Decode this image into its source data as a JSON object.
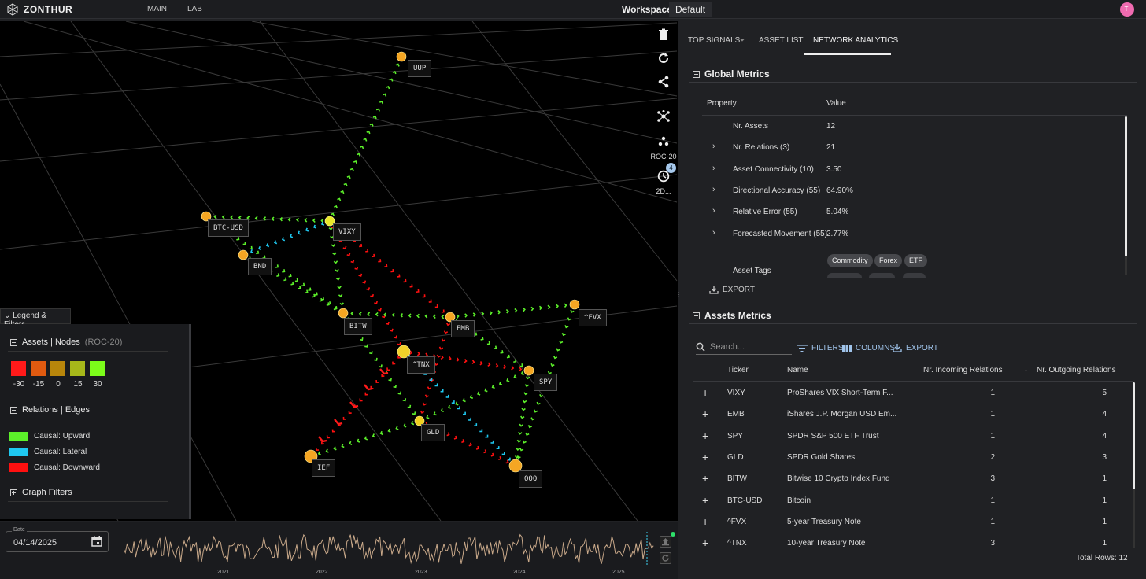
{
  "app": {
    "brand": "ZONTHUR",
    "nav": [
      "MAIN",
      "LAB"
    ],
    "workspace_label": "Workspace:",
    "workspace_value": "Default",
    "avatar_initials": "TI"
  },
  "toolbar": {
    "roc_label": "ROC-20",
    "history_label": "2D...",
    "history_badge": "4"
  },
  "graph": {
    "nodes": [
      {
        "id": "UUP",
        "label": "UUP"
      },
      {
        "id": "BTC-USD",
        "label": "BTC-USD"
      },
      {
        "id": "VIXY",
        "label": "VIXY"
      },
      {
        "id": "BND",
        "label": "BND"
      },
      {
        "id": "^FVX",
        "label": "^FVX"
      },
      {
        "id": "BITW",
        "label": "BITW"
      },
      {
        "id": "EMB",
        "label": "EMB"
      },
      {
        "id": "^TNX",
        "label": "^TNX"
      },
      {
        "id": "SPY",
        "label": "SPY"
      },
      {
        "id": "GLD",
        "label": "GLD"
      },
      {
        "id": "IEF",
        "label": "IEF"
      },
      {
        "id": "QQQ",
        "label": "QQQ"
      }
    ]
  },
  "legend": {
    "tab_label": "Legend & Filters",
    "assets_title": "Assets | Nodes",
    "assets_sub": "(ROC-20)",
    "scale": [
      {
        "label": "-30",
        "color": "#ff1a1a"
      },
      {
        "label": "-15",
        "color": "#e05a10"
      },
      {
        "label": "0",
        "color": "#b8860b"
      },
      {
        "label": "15",
        "color": "#a6b81a"
      },
      {
        "label": "30",
        "color": "#7cfc1a"
      }
    ],
    "relations_title": "Relations | Edges",
    "edges": [
      {
        "label": "Causal: Upward",
        "color": "#5cf02a"
      },
      {
        "label": "Causal: Lateral",
        "color": "#1fc8f0"
      },
      {
        "label": "Causal: Downward",
        "color": "#ff1010"
      }
    ],
    "filters_title": "Graph Filters"
  },
  "timeline": {
    "date_caption": "Date",
    "date_value": "04/14/2025",
    "years": [
      "2021",
      "2022",
      "2023",
      "2024",
      "2025"
    ]
  },
  "tabs": [
    "TOP SIGNALS",
    "ASSET LIST",
    "NETWORK ANALYTICS"
  ],
  "global_metrics": {
    "title": "Global Metrics",
    "col_property": "Property",
    "col_value": "Value",
    "rows": [
      {
        "property": "Nr. Assets",
        "value": "12"
      },
      {
        "property": "Nr. Relations (3)",
        "value": "21"
      },
      {
        "property": "Asset Connectivity (10)",
        "value": "3.50"
      },
      {
        "property": "Directional Accuracy (55)",
        "value": "64.90%"
      },
      {
        "property": "Relative Error (55)",
        "value": "5.04%"
      },
      {
        "property": "Forecasted Movement (55)",
        "value": "2.77%"
      }
    ],
    "tags_label": "Asset Tags",
    "tags": [
      "Commodity",
      "Forex",
      "ETF"
    ],
    "export_label": "EXPORT"
  },
  "assets_metrics": {
    "title": "Assets Metrics",
    "search_placeholder": "Search...",
    "filters_label": "FILTERS",
    "columns_label": "COLUMNS",
    "export_label": "EXPORT",
    "headers": {
      "ticker": "Ticker",
      "name": "Name",
      "incoming": "Nr. Incoming Relations",
      "outgoing": "Nr. Outgoing Relations"
    },
    "rows": [
      {
        "ticker": "VIXY",
        "name": "ProShares VIX Short-Term F...",
        "incoming": "1",
        "outgoing": "5"
      },
      {
        "ticker": "EMB",
        "name": "iShares J.P. Morgan USD Em...",
        "incoming": "1",
        "outgoing": "4"
      },
      {
        "ticker": "SPY",
        "name": "SPDR S&P 500 ETF Trust",
        "incoming": "1",
        "outgoing": "4"
      },
      {
        "ticker": "GLD",
        "name": "SPDR Gold Shares",
        "incoming": "2",
        "outgoing": "3"
      },
      {
        "ticker": "BITW",
        "name": "Bitwise 10 Crypto Index Fund",
        "incoming": "3",
        "outgoing": "1"
      },
      {
        "ticker": "BTC-USD",
        "name": "Bitcoin",
        "incoming": "1",
        "outgoing": "1"
      },
      {
        "ticker": "^FVX",
        "name": "5-year Treasury Note",
        "incoming": "1",
        "outgoing": "1"
      },
      {
        "ticker": "^TNX",
        "name": "10-year Treasury Note",
        "incoming": "3",
        "outgoing": "1"
      }
    ],
    "total_label": "Total Rows: 12"
  }
}
